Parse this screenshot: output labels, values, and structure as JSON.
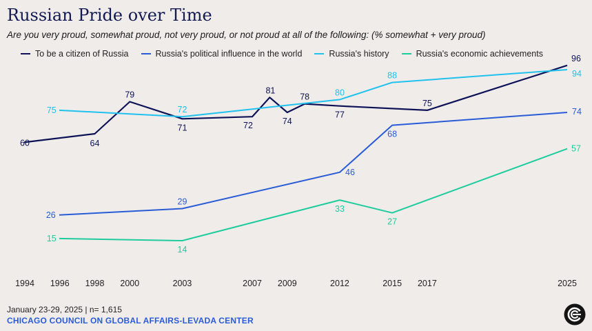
{
  "header": {
    "title": "Russian Pride over Time",
    "subtitle": "Are you very proud, somewhat proud, not very proud, or not proud at all of the following: (% somewhat + very proud)"
  },
  "footer": {
    "date": "January 23-29, 2025 | n= 1,615",
    "source": "CHICAGO COUNCIL ON GLOBAL AFFAIRS-LEVADA CENTER"
  },
  "logo_icon": "chicago-council-logo-icon",
  "chart_data": {
    "type": "line",
    "title": "Russian Pride over Time",
    "xlabel": "",
    "ylabel": "",
    "x_ticks": [
      1994,
      1996,
      1998,
      2000,
      2003,
      2007,
      2009,
      2012,
      2015,
      2017,
      2025
    ],
    "xlim": [
      1994,
      2025
    ],
    "grid": false,
    "legend_position": "top",
    "series": [
      {
        "name": "To be a citizen of Russia",
        "color": "#0d1257",
        "points": [
          {
            "x": 1994,
            "y": 60
          },
          {
            "x": 1998,
            "y": 64
          },
          {
            "x": 2000,
            "y": 79
          },
          {
            "x": 2003,
            "y": 71
          },
          {
            "x": 2007,
            "y": 72
          },
          {
            "x": 2008,
            "y": 81
          },
          {
            "x": 2009,
            "y": 74
          },
          {
            "x": 2010,
            "y": 78
          },
          {
            "x": 2012,
            "y": 77
          },
          {
            "x": 2017,
            "y": 75
          },
          {
            "x": 2025,
            "y": 96
          }
        ],
        "labels": [
          {
            "x": 1994,
            "y": 60,
            "text": "60"
          },
          {
            "x": 1998,
            "y": 64,
            "text": "64"
          },
          {
            "x": 2000,
            "y": 79,
            "text": "79"
          },
          {
            "x": 2003,
            "y": 71,
            "text": "71"
          },
          {
            "x": 2007,
            "y": 72,
            "text": "72"
          },
          {
            "x": 2008,
            "y": 81,
            "text": "81"
          },
          {
            "x": 2009,
            "y": 74,
            "text": "74"
          },
          {
            "x": 2010,
            "y": 78,
            "text": "78"
          },
          {
            "x": 2012,
            "y": 77,
            "text": "77"
          },
          {
            "x": 2017,
            "y": 75,
            "text": "75"
          },
          {
            "x": 2025,
            "y": 96,
            "text": "96"
          }
        ]
      },
      {
        "name": "Russia's political influence in the world",
        "color": "#2a5bd7",
        "points": [
          {
            "x": 1996,
            "y": 26
          },
          {
            "x": 2003,
            "y": 29
          },
          {
            "x": 2012,
            "y": 46
          },
          {
            "x": 2015,
            "y": 68
          },
          {
            "x": 2025,
            "y": 74
          }
        ],
        "labels": [
          {
            "x": 1996,
            "y": 26,
            "text": "26"
          },
          {
            "x": 2003,
            "y": 29,
            "text": "29"
          },
          {
            "x": 2012,
            "y": 46,
            "text": "46"
          },
          {
            "x": 2015,
            "y": 68,
            "text": "68"
          },
          {
            "x": 2025,
            "y": 74,
            "text": "74"
          }
        ]
      },
      {
        "name": "Russia's history",
        "color": "#1fc1ee",
        "points": [
          {
            "x": 1996,
            "y": 75
          },
          {
            "x": 2003,
            "y": 72
          },
          {
            "x": 2012,
            "y": 80
          },
          {
            "x": 2015,
            "y": 88
          },
          {
            "x": 2025,
            "y": 94
          }
        ],
        "labels": [
          {
            "x": 1996,
            "y": 75,
            "text": "75"
          },
          {
            "x": 2003,
            "y": 72,
            "text": "72"
          },
          {
            "x": 2012,
            "y": 80,
            "text": "80"
          },
          {
            "x": 2015,
            "y": 88,
            "text": "88"
          },
          {
            "x": 2025,
            "y": 94,
            "text": "94"
          }
        ]
      },
      {
        "name": "Russia's economic achievements",
        "color": "#1dcc9d",
        "points": [
          {
            "x": 1996,
            "y": 15
          },
          {
            "x": 2003,
            "y": 14
          },
          {
            "x": 2012,
            "y": 33
          },
          {
            "x": 2015,
            "y": 27
          },
          {
            "x": 2025,
            "y": 57
          }
        ],
        "labels": [
          {
            "x": 1996,
            "y": 15,
            "text": "15"
          },
          {
            "x": 2003,
            "y": 14,
            "text": "14"
          },
          {
            "x": 2012,
            "y": 33,
            "text": "33"
          },
          {
            "x": 2015,
            "y": 27,
            "text": "27"
          },
          {
            "x": 2025,
            "y": 57,
            "text": "57"
          }
        ]
      }
    ]
  }
}
